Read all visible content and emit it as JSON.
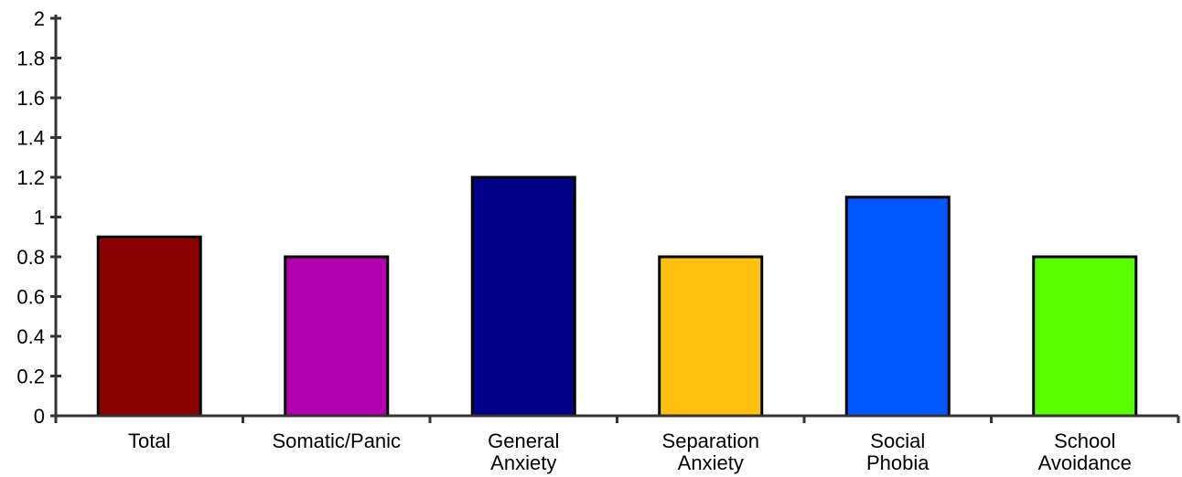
{
  "chart_data": {
    "type": "bar",
    "categories": [
      [
        "Total"
      ],
      [
        "Somatic/Panic"
      ],
      [
        "General",
        "Anxiety"
      ],
      [
        "Separation",
        "Anxiety"
      ],
      [
        "Social",
        "Phobia"
      ],
      [
        "School",
        "Avoidance"
      ]
    ],
    "values": [
      0.9,
      0.8,
      1.2,
      0.8,
      1.1,
      0.8
    ],
    "colors": [
      "#8B0000",
      "#B000B0",
      "#000088",
      "#FFC010",
      "#0058FF",
      "#58FF00"
    ],
    "ylim": [
      0,
      2
    ],
    "yticks": [
      0,
      0.2,
      0.4,
      0.6,
      0.8,
      1,
      1.2,
      1.4,
      1.6,
      1.8,
      2
    ],
    "ytick_labels": [
      "0",
      "0.2",
      "0.4",
      "0.6",
      "0.8",
      "1",
      "1.2",
      "1.4",
      "1.6",
      "1.8",
      "2"
    ],
    "grid": false,
    "title": "",
    "xlabel": "",
    "ylabel": ""
  }
}
